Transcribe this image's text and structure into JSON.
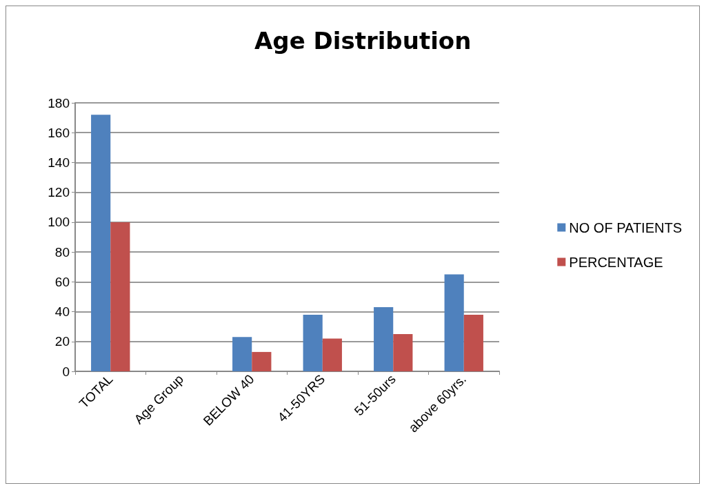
{
  "chart_data": {
    "type": "bar",
    "title": "Age Distribution",
    "categories": [
      "TOTAL",
      "Age Group",
      "BELOW 40",
      "41-50YRS",
      "51-50urs",
      "above 60yrs."
    ],
    "series": [
      {
        "name": "NO OF PATIENTS",
        "color": "#4f81bd",
        "values": [
          172,
          null,
          23,
          38,
          43,
          65
        ]
      },
      {
        "name": "PERCENTAGE",
        "color": "#c0504d",
        "values": [
          100,
          null,
          13,
          22,
          25,
          38
        ]
      }
    ],
    "ylim": [
      0,
      180
    ],
    "yticks": [
      0,
      20,
      40,
      60,
      80,
      100,
      120,
      140,
      160,
      180
    ],
    "grid": "y",
    "legend": "right"
  }
}
